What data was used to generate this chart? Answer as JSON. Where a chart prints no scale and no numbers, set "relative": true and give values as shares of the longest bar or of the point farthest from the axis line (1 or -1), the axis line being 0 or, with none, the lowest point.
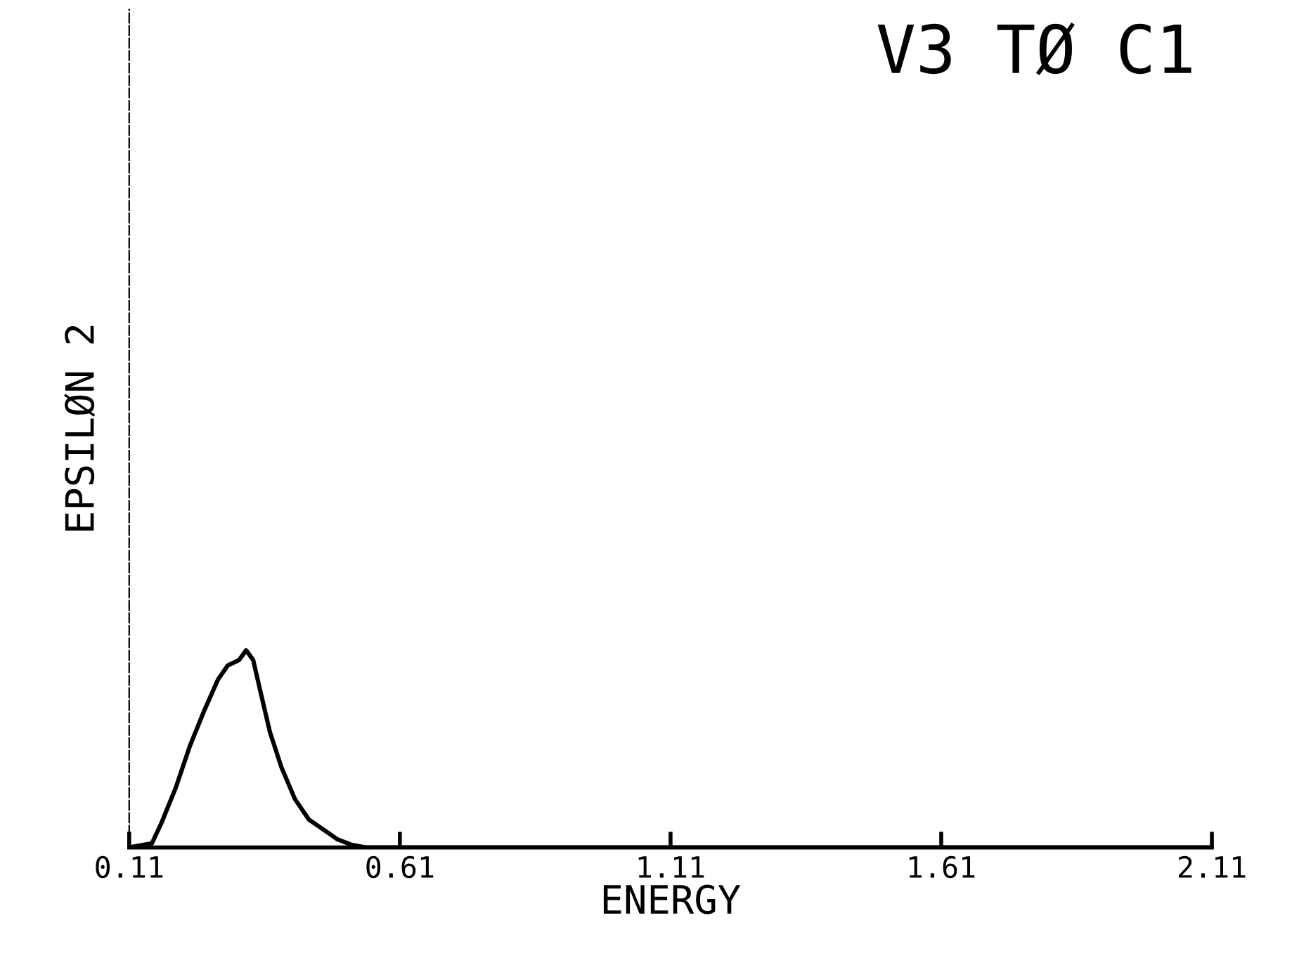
{
  "chart_data": {
    "type": "line",
    "title": "V3 TØ C1",
    "xlabel": "ENERGY",
    "ylabel": "EPSILØN 2",
    "relative": true,
    "xlim": [
      0.11,
      2.11
    ],
    "xticks": [
      0.11,
      0.61,
      1.11,
      1.61,
      2.11
    ],
    "series": [
      {
        "color": "#000000",
        "x": [
          0.11,
          0.152,
          0.17,
          0.196,
          0.222,
          0.248,
          0.274,
          0.292,
          0.313,
          0.326,
          0.339,
          0.352,
          0.37,
          0.391,
          0.416,
          0.442,
          0.468,
          0.494,
          0.52,
          0.546,
          2.11
        ],
        "values": [
          0,
          0.021,
          0.127,
          0.303,
          0.514,
          0.69,
          0.852,
          0.923,
          0.951,
          1.0,
          0.951,
          0.796,
          0.585,
          0.408,
          0.246,
          0.141,
          0.092,
          0.042,
          0.014,
          0,
          0
        ]
      }
    ],
    "grid": false,
    "legend": false,
    "marker": "none",
    "line_style": "solid"
  }
}
